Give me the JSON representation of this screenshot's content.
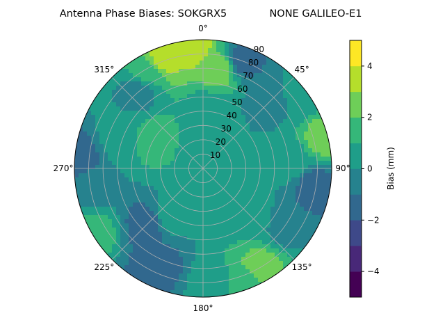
{
  "chart_data": {
    "type": "heatmap",
    "subtype": "polar-contour",
    "title": "Antenna Phase Biases: SOKGRX5",
    "subtitle": "NONE GALILEO-E1",
    "angular_axis": {
      "unit": "degrees azimuth",
      "direction": "clockwise",
      "zero_location": "top",
      "tick_labels": [
        "0°",
        "45°",
        "90°",
        "135°",
        "180°",
        "225°",
        "270°",
        "315°"
      ]
    },
    "radial_axis": {
      "quantity": "zenith angle (deg)",
      "range": [
        0,
        90
      ],
      "tick_labels": [
        "10",
        "20",
        "30",
        "40",
        "50",
        "60",
        "70",
        "80",
        "90"
      ]
    },
    "grid": true,
    "colorbar": {
      "label": "Bias (mm)",
      "range": [
        -5,
        5
      ],
      "levels": [
        -5,
        -4,
        -3,
        -2,
        -1,
        0,
        1,
        2,
        3,
        4,
        5
      ],
      "tick_labels": [
        "−4",
        "−2",
        "0",
        "2",
        "4"
      ],
      "colors": [
        "#440154",
        "#482878",
        "#3e4989",
        "#31688e",
        "#26828e",
        "#1f9e89",
        "#35b779",
        "#6ece58",
        "#b5de2b",
        "#fde725"
      ]
    },
    "regions": [
      {
        "az": 340,
        "zen": 82,
        "value": 3.5
      },
      {
        "az": 355,
        "zen": 86,
        "value": 3.5
      },
      {
        "az": 330,
        "zen": 78,
        "value": 1.5
      },
      {
        "az": 10,
        "zen": 70,
        "value": 2.5
      },
      {
        "az": 5,
        "zen": 40,
        "value": 0.5
      },
      {
        "az": 20,
        "zen": 80,
        "value": -1.5
      },
      {
        "az": 45,
        "zen": 65,
        "value": -0.5
      },
      {
        "az": 55,
        "zen": 85,
        "value": 0.5
      },
      {
        "az": 75,
        "zen": 88,
        "value": 2.5
      },
      {
        "az": 85,
        "zen": 60,
        "value": 0.5
      },
      {
        "az": 100,
        "zen": 80,
        "value": -1.5
      },
      {
        "az": 125,
        "zen": 70,
        "value": -0.5
      },
      {
        "az": 135,
        "zen": 50,
        "value": 0.5
      },
      {
        "az": 150,
        "zen": 80,
        "value": 2.5
      },
      {
        "az": 160,
        "zen": 86,
        "value": 1.5
      },
      {
        "az": 175,
        "zen": 80,
        "value": 0.5
      },
      {
        "az": 205,
        "zen": 75,
        "value": -1.5
      },
      {
        "az": 225,
        "zen": 55,
        "value": -1.5
      },
      {
        "az": 215,
        "zen": 40,
        "value": 0.5
      },
      {
        "az": 240,
        "zen": 88,
        "value": 1.5
      },
      {
        "az": 260,
        "zen": 80,
        "value": -0.5
      },
      {
        "az": 275,
        "zen": 88,
        "value": -1.5
      },
      {
        "az": 290,
        "zen": 60,
        "value": 0.5
      },
      {
        "az": 300,
        "zen": 40,
        "value": 1.5
      },
      {
        "az": 320,
        "zen": 70,
        "value": -0.5
      },
      {
        "az": 0,
        "zen": 10,
        "value": 0.5
      }
    ]
  }
}
